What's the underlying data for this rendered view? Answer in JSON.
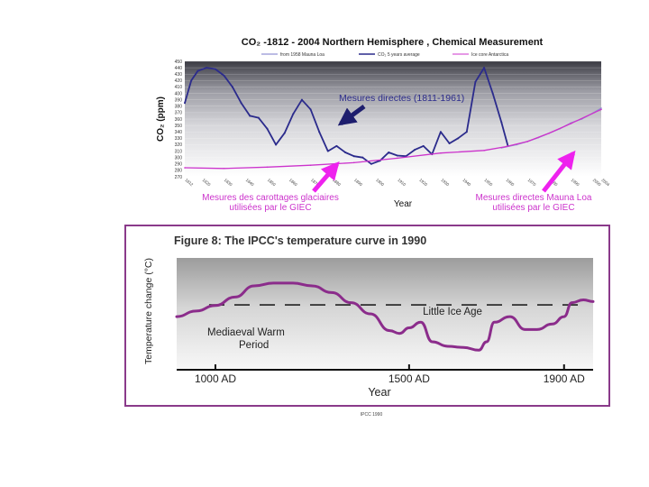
{
  "chart_data": [
    {
      "type": "line",
      "title": "CO₂ -1812 - 2004 Northern Hemisphere , Chemical Measurement",
      "ylabel": "CO₂ (ppm)",
      "xlabel": "Year",
      "ylim": [
        270,
        450
      ],
      "xlim": [
        1812,
        2004
      ],
      "y_ticks": [
        450,
        440,
        430,
        420,
        410,
        400,
        390,
        380,
        370,
        360,
        350,
        340,
        330,
        320,
        310,
        300,
        290,
        280,
        270
      ],
      "x_ticks": [
        1812,
        1820,
        1830,
        1840,
        1850,
        1860,
        1870,
        1880,
        1890,
        1900,
        1910,
        1920,
        1930,
        1940,
        1950,
        1960,
        1970,
        1980,
        1990,
        2000,
        2004
      ],
      "grid": true,
      "legend": [
        {
          "label": "from 1958 Mauna Loa",
          "color": "#7a7ac8"
        },
        {
          "label": "CO₂ 5 years average",
          "color": "#2b2b8c"
        },
        {
          "label": "Ice core Antarctica",
          "color": "#cc33cc"
        }
      ],
      "series": [
        {
          "name": "CO₂ 5 years average",
          "color": "#2b2b8c",
          "x": [
            1812,
            1815,
            1818,
            1822,
            1826,
            1830,
            1834,
            1838,
            1842,
            1846,
            1850,
            1854,
            1858,
            1862,
            1866,
            1870,
            1874,
            1878,
            1882,
            1886,
            1890,
            1894,
            1898,
            1902,
            1906,
            1910,
            1914,
            1918,
            1922,
            1926,
            1930,
            1934,
            1938,
            1942,
            1946,
            1950,
            1954,
            1958,
            1961
          ],
          "y": [
            385,
            420,
            435,
            440,
            438,
            428,
            410,
            385,
            365,
            362,
            345,
            320,
            338,
            368,
            390,
            375,
            340,
            310,
            318,
            308,
            302,
            300,
            290,
            295,
            308,
            303,
            302,
            312,
            318,
            305,
            340,
            322,
            330,
            340,
            418,
            440,
            400,
            355,
            318
          ]
        },
        {
          "name": "from 1958 Mauna Loa",
          "color": "#8f8fd0",
          "x": [
            1958,
            1965,
            1970,
            1975,
            1980,
            1985,
            1990,
            1995,
            2000,
            2004
          ],
          "y": [
            315,
            320,
            325,
            331,
            338,
            345,
            354,
            360,
            369,
            377
          ]
        },
        {
          "name": "Ice core Antarctica",
          "color": "#cc33cc",
          "x": [
            1812,
            1830,
            1850,
            1870,
            1890,
            1910,
            1930,
            1950,
            1960,
            1970,
            1980,
            1990,
            2004
          ],
          "y": [
            284,
            283,
            285,
            288,
            292,
            299,
            307,
            311,
            317,
            325,
            338,
            353,
            375
          ]
        }
      ],
      "annotations": [
        {
          "text": "Mesures directes (1811-1961)",
          "color": "#2b2b8c"
        },
        {
          "text": "Mesures des carottages glaciaires utilisées par le GIEC",
          "color": "#cc33cc"
        },
        {
          "text": "Mesures directes Mauna Loa utilisées par le GIEC",
          "color": "#cc33cc"
        }
      ]
    },
    {
      "type": "line",
      "title": "Figure 8: The IPCC's temperature curve in 1990",
      "ylabel": "Temperature change (°C)",
      "xlabel": "Year",
      "xlim": [
        900,
        1975
      ],
      "ylim": [
        -1,
        1
      ],
      "x_ticks": [
        "1000 AD",
        "1500 AD",
        "1900 AD"
      ],
      "x_tick_values": [
        1000,
        1500,
        1900
      ],
      "reference_line_level": 0.16,
      "series": [
        {
          "name": "",
          "color": "#8b2c8b",
          "x": [
            900,
            950,
            1000,
            1050,
            1100,
            1150,
            1200,
            1250,
            1300,
            1350,
            1400,
            1450,
            1475,
            1500,
            1530,
            1560,
            1600,
            1640,
            1680,
            1700,
            1720,
            1760,
            1800,
            1830,
            1870,
            1900,
            1920,
            1950,
            1975
          ],
          "y": [
            -0.05,
            0.05,
            0.15,
            0.3,
            0.5,
            0.55,
            0.55,
            0.5,
            0.38,
            0.2,
            0.0,
            -0.3,
            -0.35,
            -0.25,
            -0.15,
            -0.5,
            -0.58,
            -0.6,
            -0.65,
            -0.5,
            -0.15,
            -0.05,
            -0.28,
            -0.28,
            -0.18,
            -0.05,
            0.2,
            0.25,
            0.22
          ]
        }
      ],
      "annotations": [
        {
          "text": "Little Ice Age"
        },
        {
          "text": "Mediaeval Warm Period"
        }
      ],
      "source": "IPCC 1990"
    }
  ]
}
